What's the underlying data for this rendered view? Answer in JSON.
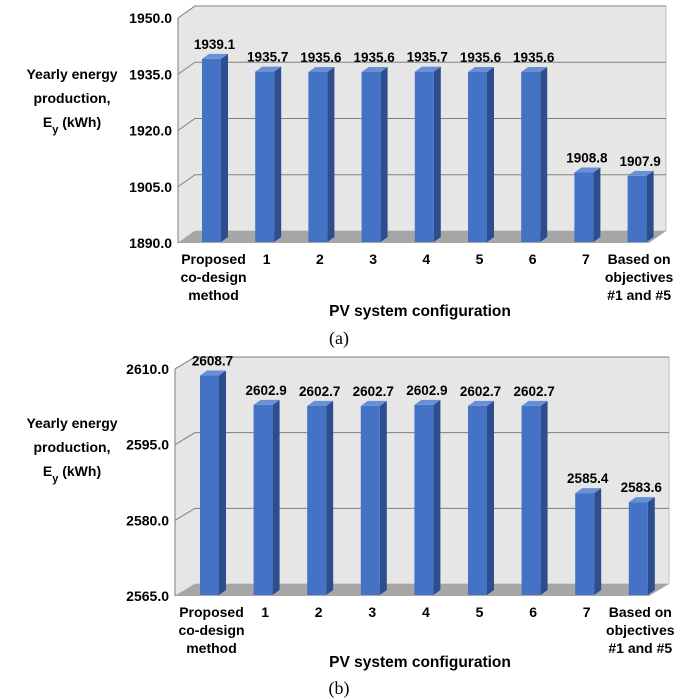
{
  "chart_data": [
    {
      "type": "bar",
      "caption": "(a)",
      "ylabel_lines": [
        "Yearly energy",
        "production,"
      ],
      "ylabel_sym": "E",
      "ylabel_sub": "y",
      "ylabel_unit": " (kWh)",
      "xlabel": "PV system configuration",
      "ylim": [
        1890.0,
        1950.0
      ],
      "yticks": [
        "1890.0",
        "1905.0",
        "1920.0",
        "1935.0",
        "1950.0"
      ],
      "categories": [
        [
          "Proposed",
          "co-design",
          "method"
        ],
        [
          "1"
        ],
        [
          "2"
        ],
        [
          "3"
        ],
        [
          "4"
        ],
        [
          "5"
        ],
        [
          "6"
        ],
        [
          "7"
        ],
        [
          "Based on",
          "objectives",
          "#1 and #5"
        ]
      ],
      "values": [
        1939.1,
        1935.7,
        1935.6,
        1935.6,
        1935.7,
        1935.6,
        1935.6,
        1908.8,
        1907.9
      ],
      "value_labels": [
        "1939.1",
        "1935.7",
        "1935.6",
        "1935.6",
        "1935.7",
        "1935.6",
        "1935.6",
        "1908.8",
        "1907.9"
      ]
    },
    {
      "type": "bar",
      "caption": "(b)",
      "ylabel_lines": [
        "Yearly energy",
        "production,"
      ],
      "ylabel_sym": "E",
      "ylabel_sub": "y",
      "ylabel_unit": " (kWh)",
      "xlabel": "PV system configuration",
      "ylim": [
        2565.0,
        2610.0
      ],
      "yticks": [
        "2565.0",
        "2580.0",
        "2595.0",
        "2610.0"
      ],
      "categories": [
        [
          "Proposed",
          "co-design",
          "method"
        ],
        [
          "1"
        ],
        [
          "2"
        ],
        [
          "3"
        ],
        [
          "4"
        ],
        [
          "5"
        ],
        [
          "6"
        ],
        [
          "7"
        ],
        [
          "Based on",
          "objectives",
          "#1 and #5"
        ]
      ],
      "values": [
        2608.7,
        2602.9,
        2602.7,
        2602.7,
        2602.9,
        2602.7,
        2602.7,
        2585.4,
        2583.6
      ],
      "value_labels": [
        "2608.7",
        "2602.9",
        "2602.7",
        "2602.7",
        "2602.9",
        "2602.7",
        "2602.7",
        "2585.4",
        "2583.6"
      ]
    }
  ],
  "colors": {
    "bar_front": "#4472c4",
    "bar_side": "#2c4e8e",
    "bar_top": "#6b8fd6",
    "wall": "#e6e6e6",
    "floor": "#a6a6a6",
    "grid": "#808080"
  }
}
